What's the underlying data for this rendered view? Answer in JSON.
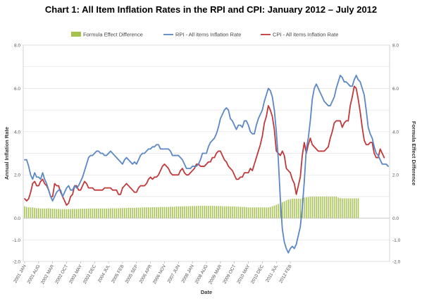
{
  "chart_data": {
    "type": "line",
    "title": "Chart 1: All Item Inflation Rates in the RPI and CPI: January 2012 – July 2012",
    "xlabel": "Date",
    "ylabel": "Annual Inflation Rate",
    "y2label": "Formula Effect  Difference",
    "ylim": [
      -2.0,
      8.0
    ],
    "y2lim": [
      -2.0,
      8.0
    ],
    "yticks": [
      "8.0",
      "6.0",
      "4.0",
      "2.0",
      "0.0",
      "-1.0",
      "-2.0"
    ],
    "yticks_right": [
      "8.0",
      "6.0",
      "4.0",
      "2.0",
      "0.0",
      "-1.0",
      "-2.0"
    ],
    "x_tick_labels": [
      "2001 JAN",
      "2001 AUG",
      "2002 MAR",
      "2002 OCT",
      "2003 MAY",
      "2003 DEC",
      "2004 JUL",
      "2005 FEB",
      "2005 SEP",
      "2006 APR",
      "2006 NOV",
      "2007 JUN",
      "2008 JAN",
      "2008 AUG",
      "2009 MAR",
      "2009 OCT",
      "2010 MAY",
      "2010 DEC",
      "2011 JUL",
      "2012 FEB"
    ],
    "legend_position": "top",
    "grid": true,
    "colors": {
      "rpi": "#5b87c5",
      "cpi": "#c0393b",
      "formula": "#a5c24f"
    },
    "series": [
      {
        "name": "Formula Effect Difference",
        "kind": "bar",
        "values": [
          0.55,
          0.52,
          0.5,
          0.5,
          0.5,
          0.48,
          0.46,
          0.46,
          0.45,
          0.45,
          0.45,
          0.45,
          0.46,
          0.45,
          0.44,
          0.44,
          0.43,
          0.43,
          0.42,
          0.42,
          0.42,
          0.42,
          0.42,
          0.42,
          0.43,
          0.43,
          0.43,
          0.43,
          0.44,
          0.44,
          0.44,
          0.44,
          0.45,
          0.45,
          0.45,
          0.45,
          0.45,
          0.45,
          0.45,
          0.45,
          0.45,
          0.45,
          0.45,
          0.46,
          0.46,
          0.46,
          0.46,
          0.46,
          0.47,
          0.47,
          0.47,
          0.47,
          0.48,
          0.48,
          0.48,
          0.48,
          0.49,
          0.49,
          0.49,
          0.5,
          0.5,
          0.5,
          0.5,
          0.5,
          0.51,
          0.51,
          0.51,
          0.51,
          0.52,
          0.52,
          0.52,
          0.52,
          0.52,
          0.53,
          0.53,
          0.53,
          0.54,
          0.54,
          0.54,
          0.55,
          0.55,
          0.55,
          0.55,
          0.56,
          0.56,
          0.56,
          0.56,
          0.57,
          0.57,
          0.57,
          0.57,
          0.57,
          0.57,
          0.57,
          0.57,
          0.57,
          0.56,
          0.56,
          0.56,
          0.55,
          0.55,
          0.55,
          0.55,
          0.54,
          0.54,
          0.54,
          0.53,
          0.53,
          0.53,
          0.52,
          0.52,
          0.51,
          0.5,
          0.5,
          0.5,
          0.5,
          0.5,
          0.5,
          0.5,
          0.5,
          0.5,
          0.5,
          0.5,
          0.52,
          0.55,
          0.58,
          0.62,
          0.66,
          0.7,
          0.74,
          0.78,
          0.82,
          0.86,
          0.88,
          0.9,
          0.9,
          0.9,
          0.9,
          0.9,
          0.92,
          0.95,
          0.97,
          0.98,
          0.99,
          1.0,
          1.0,
          1.0,
          1.0,
          1.0,
          1.0,
          1.0,
          1.0,
          1.0,
          1.0,
          1.0,
          1.0,
          1.0,
          0.95,
          0.93,
          0.92,
          0.92,
          0.92,
          0.92,
          0.92,
          0.92,
          0.92,
          0.92,
          0.92
        ]
      },
      {
        "name": "RPI - All items Inflation Rate",
        "kind": "line",
        "values": [
          2.7,
          2.7,
          2.4,
          2.0,
          1.8,
          2.1,
          1.9,
          1.9,
          1.8,
          2.1,
          1.8,
          1.6,
          1.3,
          1.0,
          0.8,
          1.0,
          1.2,
          1.3,
          1.3,
          1.0,
          1.2,
          1.4,
          1.5,
          1.3,
          1.3,
          1.5,
          1.4,
          1.5,
          1.7,
          1.9,
          2.2,
          2.5,
          2.8,
          2.9,
          2.9,
          3.0,
          3.1,
          3.1,
          3.0,
          3.0,
          2.9,
          2.9,
          3.0,
          3.1,
          3.0,
          2.9,
          2.8,
          2.7,
          2.6,
          2.5,
          2.7,
          2.8,
          2.7,
          2.6,
          2.5,
          2.6,
          2.5,
          2.7,
          2.9,
          3.0,
          3.0,
          3.1,
          3.2,
          3.2,
          3.3,
          3.3,
          3.4,
          3.4,
          3.2,
          3.2,
          3.2,
          3.2,
          3.2,
          3.1,
          2.9,
          2.9,
          2.9,
          2.9,
          2.8,
          2.7,
          2.5,
          2.3,
          2.3,
          2.3,
          2.4,
          2.4,
          2.4,
          2.5,
          2.7,
          3.0,
          3.0,
          3.0,
          3.3,
          3.5,
          3.6,
          3.7,
          3.9,
          4.2,
          4.6,
          4.8,
          5.0,
          5.1,
          5.0,
          4.6,
          4.5,
          4.3,
          4.1,
          4.3,
          4.3,
          4.2,
          4.5,
          4.5,
          4.3,
          4.0,
          3.9,
          3.9,
          4.3,
          4.6,
          4.8,
          5.0,
          5.4,
          5.7,
          6.0,
          5.9,
          5.6,
          5.0,
          4.0,
          2.7,
          0.9,
          -0.5,
          -1.1,
          -1.4,
          -1.6,
          -1.4,
          -1.3,
          -1.4,
          -1.2,
          -0.8,
          -0.4,
          0.5,
          1.7,
          3.2,
          3.7,
          4.5,
          5.5,
          6.0,
          6.2,
          6.0,
          5.8,
          5.6,
          5.4,
          5.3,
          5.2,
          5.2,
          5.4,
          5.6,
          6.0,
          6.3,
          6.6,
          6.5,
          6.3,
          6.3,
          6.2,
          6.1,
          6.1,
          6.4,
          6.6,
          6.4,
          6.3,
          6.0,
          5.7,
          5.0,
          4.2,
          3.9,
          3.7,
          3.3,
          3.0,
          2.9,
          2.7,
          2.5,
          2.5,
          2.5,
          2.4
        ]
      },
      {
        "name": "CPI - All items Inflation Rate",
        "kind": "line",
        "values": [
          0.9,
          0.8,
          0.9,
          1.2,
          1.6,
          1.7,
          1.5,
          1.5,
          1.7,
          1.8,
          1.6,
          1.5,
          1.3,
          1.0,
          1.0,
          1.6,
          1.5,
          1.5,
          1.2,
          1.0,
          0.8,
          0.6,
          0.7,
          1.0,
          1.1,
          1.5,
          1.5,
          1.3,
          1.3,
          1.5,
          1.7,
          1.6,
          1.4,
          1.4,
          1.4,
          1.3,
          1.3,
          1.3,
          1.3,
          1.3,
          1.4,
          1.4,
          1.4,
          1.4,
          1.3,
          1.3,
          1.3,
          1.1,
          1.1,
          1.4,
          1.5,
          1.6,
          1.5,
          1.4,
          1.3,
          1.2,
          1.2,
          1.4,
          1.5,
          1.5,
          1.5,
          1.6,
          1.8,
          1.9,
          1.8,
          1.9,
          1.9,
          2.0,
          2.2,
          2.4,
          2.5,
          2.4,
          2.3,
          2.1,
          2.0,
          2.0,
          2.0,
          2.0,
          2.2,
          2.3,
          2.1,
          2.0,
          2.0,
          2.1,
          2.2,
          2.3,
          2.5,
          2.5,
          2.4,
          2.4,
          2.4,
          2.5,
          2.6,
          2.6,
          2.8,
          2.8,
          3.0,
          3.1,
          3.1,
          2.9,
          2.7,
          2.6,
          2.4,
          2.3,
          2.2,
          2.0,
          1.8,
          1.8,
          1.9,
          1.9,
          2.1,
          2.1,
          2.1,
          2.3,
          2.2,
          2.5,
          2.8,
          3.1,
          3.4,
          3.8,
          4.4,
          4.7,
          5.2,
          5.0,
          4.7,
          4.1,
          3.1,
          3.0,
          2.9,
          3.1,
          2.9,
          2.3,
          2.2,
          2.1,
          1.8,
          1.6,
          1.1,
          1.5,
          1.9,
          2.9,
          3.5,
          3.0,
          3.4,
          3.7,
          3.4,
          3.3,
          3.2,
          3.1,
          3.1,
          3.1,
          3.1,
          3.2,
          3.3,
          3.7,
          4.0,
          4.4,
          4.5,
          4.5,
          4.5,
          4.2,
          4.4,
          4.5,
          4.5,
          5.2,
          5.6,
          6.1,
          6.0,
          5.5,
          4.9,
          4.2,
          3.6,
          3.4,
          3.4,
          3.5,
          3.5,
          3.0,
          2.8,
          2.8,
          3.2,
          3.0,
          2.8
        ]
      }
    ]
  }
}
